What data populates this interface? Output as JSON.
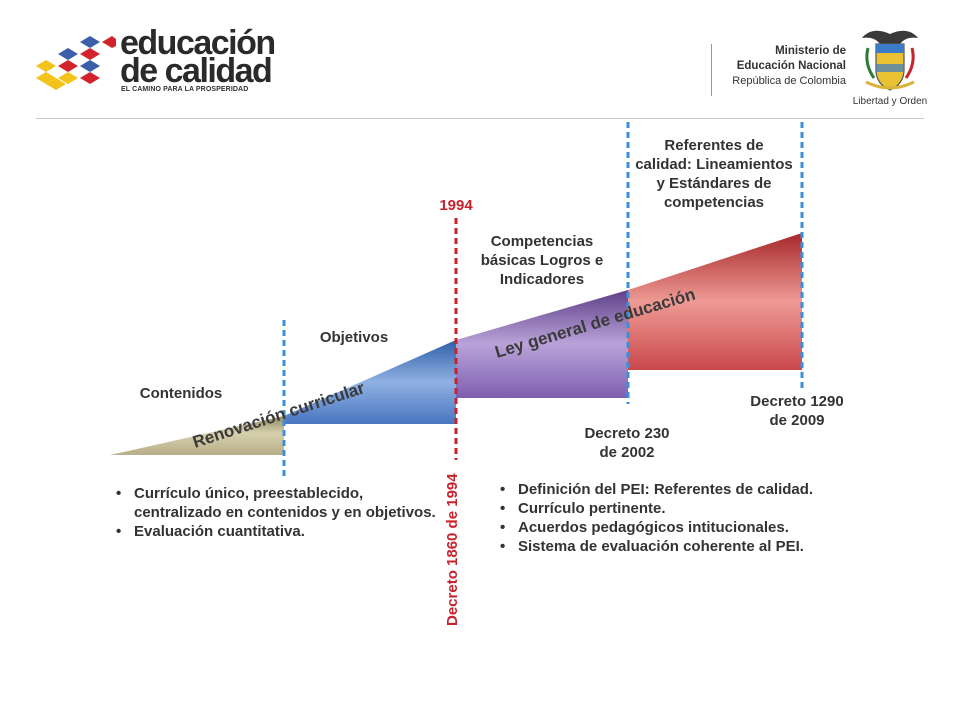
{
  "header": {
    "logo": {
      "line1": "educación",
      "line2": "de calidad",
      "slogan": "EL CAMINO PARA LA PROSPERIDAD"
    },
    "ministry": {
      "line1": "Ministerio de",
      "line2": "Educación Nacional",
      "line3": "República de Colombia"
    },
    "crest_motto": "Libertad y Orden"
  },
  "colors": {
    "segment_contenidos": "#b5ad86",
    "segment_objetivos": "#5b83c6",
    "segment_competencias": "#8a6cb3",
    "segment_referentes": "#cc4a4a",
    "divider_blue": "#3a8fd8",
    "divider_red": "#c8232c"
  },
  "timeline": {
    "stages": [
      {
        "label": "Contenidos"
      },
      {
        "label": "Objetivos"
      },
      {
        "label": "Competencias básicas Logros e Indicadores"
      },
      {
        "label": "Referentes de calidad: Lineamientos y Estándares de competencias"
      }
    ],
    "ramp_labels": {
      "renovacion": "Renovación curricular",
      "ley": "Ley general de educación"
    },
    "year_marker": "1994",
    "decreto_1860": "Decreto 1860 de 1994",
    "decreto_230": {
      "line1": "Decreto 230",
      "line2": "de 2002"
    },
    "decreto_1290": {
      "line1": "Decreto 1290",
      "line2": "de 2009"
    }
  },
  "bullets": {
    "left": [
      "Currículo único, preestablecido, centralizado en contenidos y en objetivos.",
      "Evaluación cuantitativa."
    ],
    "right": [
      "Definición del PEI: Referentes de calidad.",
      "Currículo pertinente.",
      "Acuerdos pedagógicos intitucionales.",
      "Sistema de evaluación coherente al PEI."
    ]
  }
}
